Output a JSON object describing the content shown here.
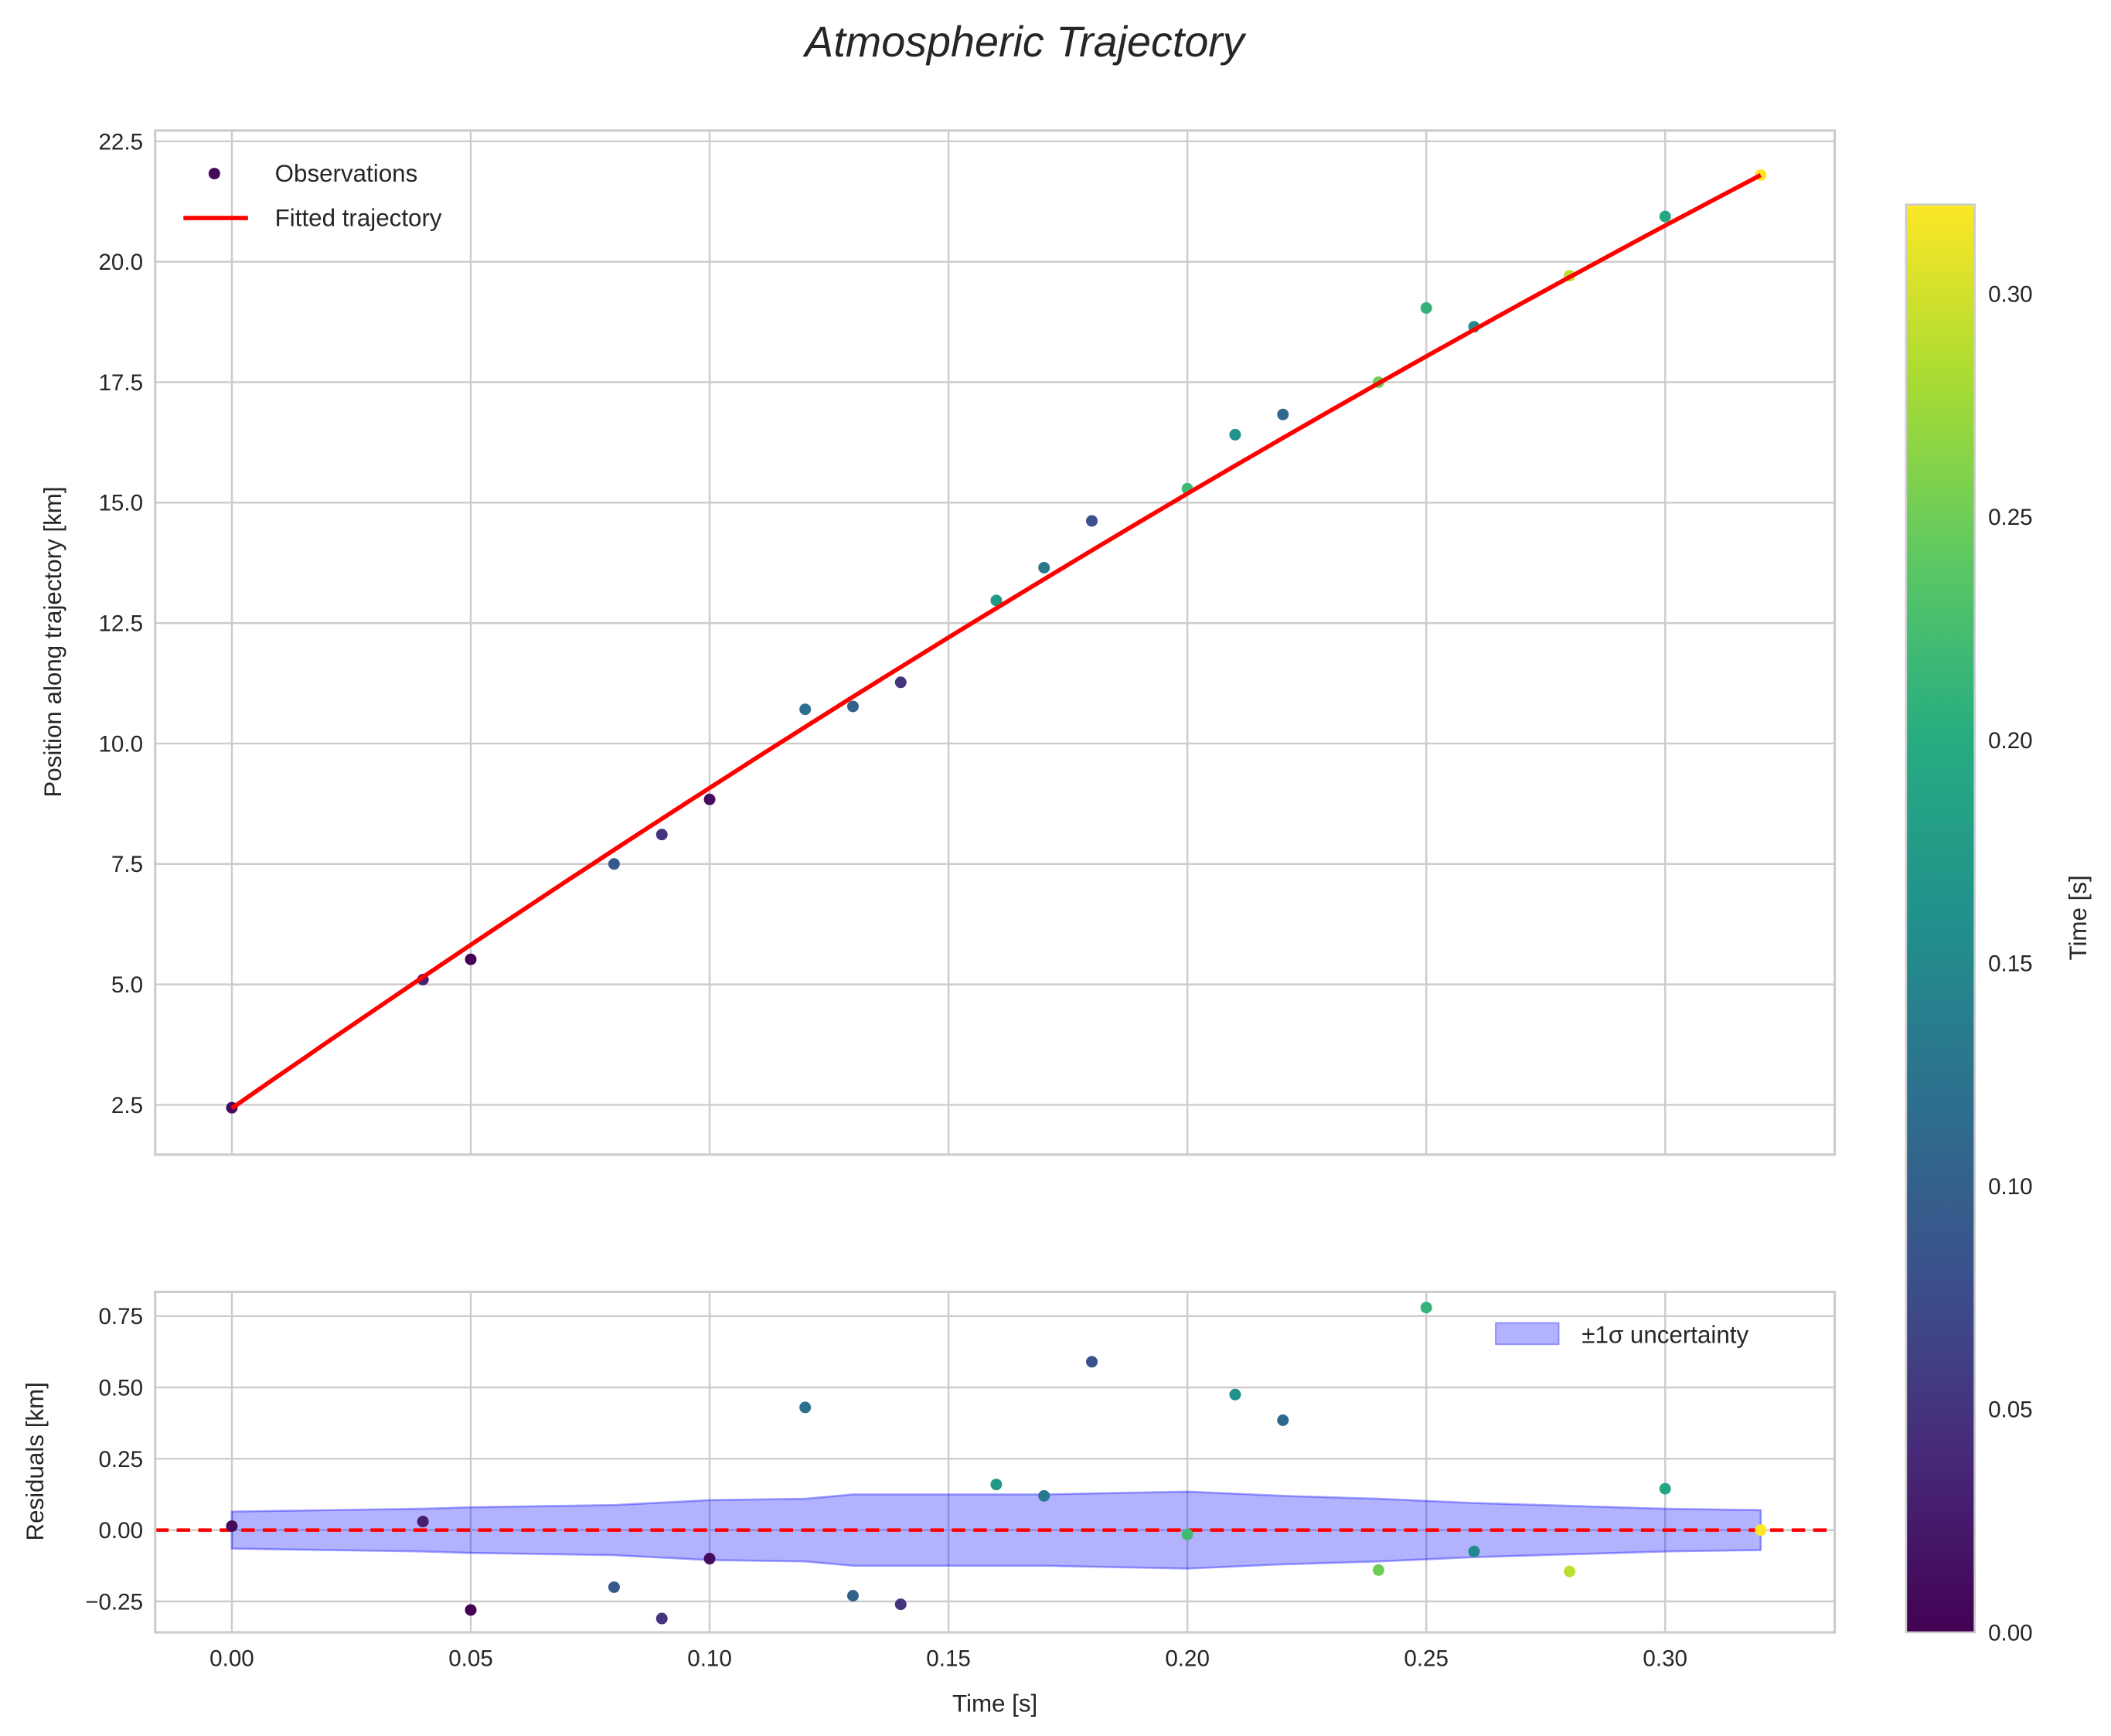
{
  "chart_data": [
    {
      "type": "scatter",
      "panel": "top",
      "title": "Atmospheric Trajectory",
      "xlabel": "",
      "ylabel": "Position along trajectory [km]",
      "xlim": [
        -0.016,
        0.336
      ],
      "ylim": [
        1.45,
        22.75
      ],
      "xticks": [
        "0.00",
        "0.05",
        "0.10",
        "0.15",
        "0.20",
        "0.25",
        "0.30"
      ],
      "yticks": [
        "2.5",
        "5.0",
        "7.5",
        "10.0",
        "12.5",
        "15.0",
        "17.5",
        "20.0",
        "22.5"
      ],
      "grid": true,
      "legend": {
        "placement": "top-left",
        "entries": [
          "Observations",
          "Fitted trajectory"
        ]
      },
      "observations": {
        "t": [
          0.0,
          0.04,
          0.05,
          0.08,
          0.09,
          0.1,
          0.12,
          0.13,
          0.14,
          0.16,
          0.17,
          0.18,
          0.2,
          0.21,
          0.22,
          0.24,
          0.25,
          0.26,
          0.28,
          0.3,
          0.32
        ],
        "y": [
          2.44,
          5.1,
          5.52,
          7.5,
          8.11,
          8.84,
          10.71,
          10.77,
          11.27,
          12.97,
          13.65,
          14.62,
          15.29,
          16.41,
          16.83,
          17.5,
          19.04,
          18.65,
          19.71,
          20.94,
          21.8
        ],
        "color_value": [
          0.01,
          0.03,
          0.0,
          0.09,
          0.05,
          0.01,
          0.12,
          0.1,
          0.05,
          0.17,
          0.13,
          0.08,
          0.22,
          0.16,
          0.11,
          0.25,
          0.21,
          0.15,
          0.29,
          0.19,
          0.32
        ]
      },
      "fit": {
        "name": "Fitted trajectory",
        "model": "quadratic",
        "a": 2.43,
        "b": 69.2,
        "c": -27.1,
        "t_range": [
          0.0,
          0.32
        ],
        "color": "#ff0000"
      }
    },
    {
      "type": "scatter",
      "panel": "bottom",
      "xlabel": "Time [s]",
      "ylabel": "Residuals [km]",
      "xlim": [
        -0.016,
        0.336
      ],
      "ylim": [
        -0.36,
        0.84
      ],
      "xticks": [
        "0.00",
        "0.05",
        "0.10",
        "0.15",
        "0.20",
        "0.25",
        "0.30"
      ],
      "yticks": [
        "−0.25",
        "0.00",
        "0.25",
        "0.50",
        "0.75"
      ],
      "ytick_values": [
        -0.25,
        0,
        0.25,
        0.5,
        0.75
      ],
      "grid": true,
      "legend": {
        "placement": "top-right",
        "entries": [
          "±1σ uncertainty"
        ]
      },
      "residuals": [
        0.014,
        0.03,
        -0.28,
        -0.2,
        -0.31,
        -0.1,
        0.43,
        -0.23,
        -0.26,
        0.16,
        0.12,
        0.59,
        -0.015,
        0.475,
        0.385,
        -0.14,
        0.78,
        -0.075,
        -0.145,
        0.145,
        0.0
      ],
      "uncertainty": {
        "t": [
          0.0,
          0.04,
          0.05,
          0.08,
          0.1,
          0.12,
          0.13,
          0.17,
          0.2,
          0.22,
          0.24,
          0.26,
          0.28,
          0.3,
          0.32
        ],
        "sigma": [
          0.065,
          0.075,
          0.08,
          0.088,
          0.105,
          0.11,
          0.125,
          0.125,
          0.135,
          0.12,
          0.11,
          0.095,
          0.085,
          0.075,
          0.07
        ],
        "color": "#0000ff"
      },
      "zero_line_color": "#ff0000"
    }
  ],
  "colorbar": {
    "label": "Time [s]",
    "range": [
      0.0,
      0.32
    ],
    "ticks": [
      "0.00",
      "0.05",
      "0.10",
      "0.15",
      "0.20",
      "0.25",
      "0.30"
    ],
    "tick_values": [
      0,
      0.05,
      0.1,
      0.15,
      0.2,
      0.25,
      0.3
    ],
    "colormap": "viridis"
  }
}
